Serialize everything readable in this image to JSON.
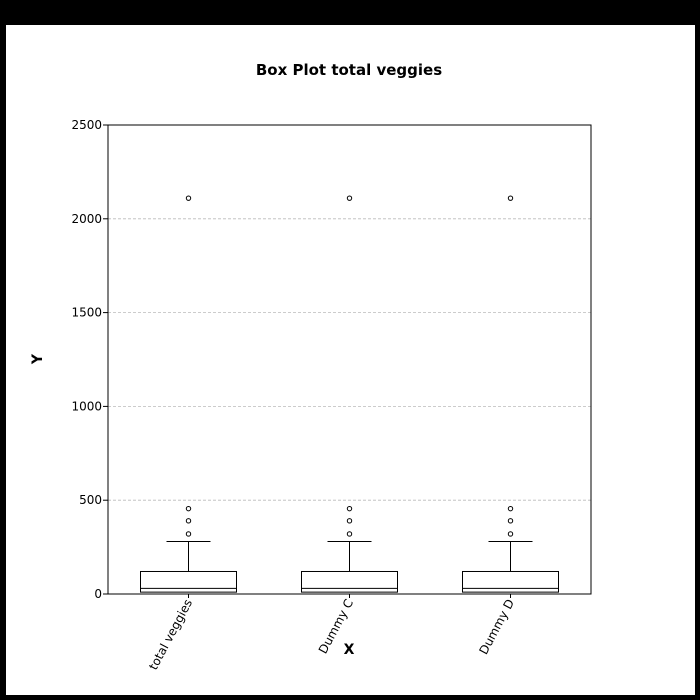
{
  "chart_data": {
    "type": "box",
    "title": "Box Plot total veggies",
    "xlabel": "X",
    "ylabel": "Y",
    "ylim": [
      0,
      2500
    ],
    "yticks": [
      0,
      500,
      1000,
      1500,
      2000,
      2500
    ],
    "grid": true,
    "categories": [
      "total veggies",
      "Dummy C",
      "Dummy D"
    ],
    "boxes": [
      {
        "category": "total veggies",
        "whisker_low": 0,
        "q1": 10,
        "median": 30,
        "q3": 120,
        "whisker_high": 280,
        "outliers": [
          320,
          390,
          455,
          2110
        ]
      },
      {
        "category": "Dummy C",
        "whisker_low": 0,
        "q1": 10,
        "median": 30,
        "q3": 120,
        "whisker_high": 280,
        "outliers": [
          320,
          390,
          455,
          2110
        ]
      },
      {
        "category": "Dummy D",
        "whisker_low": 0,
        "q1": 10,
        "median": 30,
        "q3": 120,
        "whisker_high": 280,
        "outliers": [
          320,
          390,
          455,
          2110
        ]
      }
    ]
  }
}
